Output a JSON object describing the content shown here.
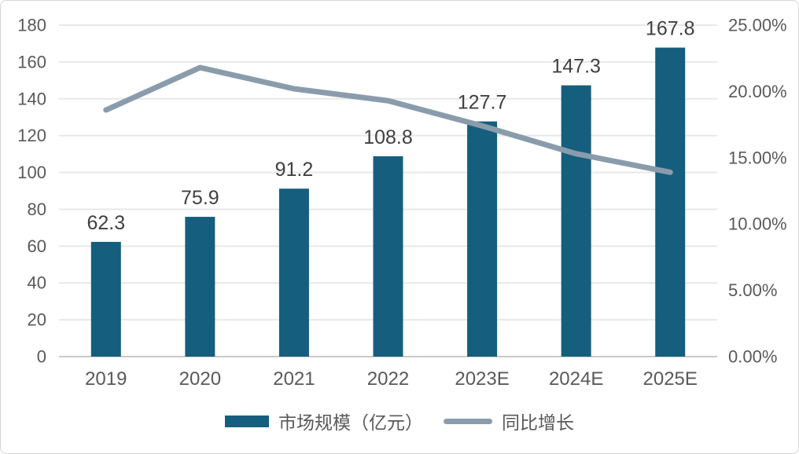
{
  "chart_data": {
    "type": "combo",
    "title": "",
    "categories": [
      "2019",
      "2020",
      "2021",
      "2022",
      "2023E",
      "2024E",
      "2025E"
    ],
    "series": [
      {
        "name": "市场规模（亿元）",
        "type": "bar",
        "axis": "left",
        "values": [
          62.3,
          75.9,
          91.2,
          108.8,
          127.7,
          147.3,
          167.8
        ],
        "data_labels": [
          "62.3",
          "75.9",
          "91.2",
          "108.8",
          "127.7",
          "147.3",
          "167.8"
        ],
        "color": "#155E7D"
      },
      {
        "name": "同比增长",
        "type": "line",
        "axis": "right",
        "values_percent": [
          18.6,
          21.8,
          20.2,
          19.3,
          17.4,
          15.3,
          13.9
        ],
        "color": "#8A9CAC"
      }
    ],
    "left_axis": {
      "min": 0,
      "max": 180,
      "step": 20,
      "tick_labels": [
        "180",
        "160",
        "140",
        "120",
        "100",
        "80",
        "60",
        "40",
        "20",
        "0"
      ]
    },
    "right_axis": {
      "min": 0,
      "max": 25,
      "step": 5,
      "tick_labels": [
        "25.00%",
        "20.00%",
        "15.00%",
        "10.00%",
        "5.00%",
        "0.00%"
      ]
    },
    "grid": true,
    "legend_position": "bottom",
    "colors": {
      "bar": "#155E7D",
      "line": "#8A9CAC",
      "gridline": "#E8E8E8",
      "baseline": "#C9C9C9",
      "axis_text": "#595959",
      "data_label_text": "#404040",
      "background": "#FFFFFF",
      "card_border": "#D5D5D5"
    }
  }
}
